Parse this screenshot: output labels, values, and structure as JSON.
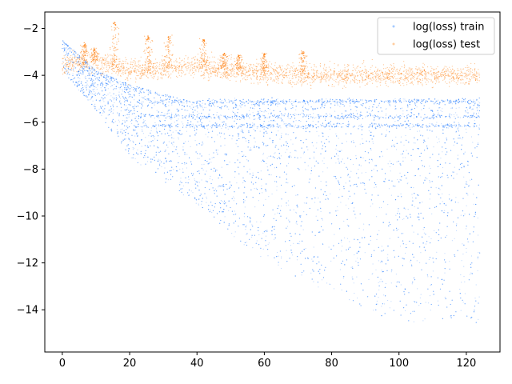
{
  "chart_data": {
    "type": "scatter",
    "title": "",
    "xlabel": "",
    "ylabel": "",
    "xlim": [
      -5.2,
      130
    ],
    "ylim": [
      -15.8,
      -1.3
    ],
    "xticks": [
      0,
      20,
      40,
      60,
      80,
      100,
      120
    ],
    "yticks": [
      -14,
      -12,
      -10,
      -8,
      -6,
      -4,
      -2
    ],
    "grid": false,
    "legend": {
      "location": "upper right"
    },
    "series": [
      {
        "name": "log(loss) train",
        "color": "#1f7bff",
        "x_range": [
          0,
          124
        ],
        "description_points": [
          {
            "x": 0,
            "y_top": -2.5,
            "y_bottom": -3.8
          },
          {
            "x": 10,
            "y_top": -3.8,
            "y_bottom": -5.5
          },
          {
            "x": 20,
            "y_top": -4.4,
            "y_bottom": -7.5
          },
          {
            "x": 40,
            "y_top": -5.2,
            "y_bottom": -9.5
          },
          {
            "x": 60,
            "y_top": -5.1,
            "y_bottom": -12.0
          },
          {
            "x": 80,
            "y_top": -5.1,
            "y_bottom": -13.6
          },
          {
            "x": 100,
            "y_top": -5.1,
            "y_bottom": -14.5
          },
          {
            "x": 124,
            "y_top": -5.1,
            "y_bottom": -14.7
          }
        ],
        "plateau_bands": [
          -5.1,
          -5.75,
          -6.15
        ]
      },
      {
        "name": "log(loss) test",
        "color": "#ff7f0e",
        "x_range": [
          0,
          124
        ],
        "description_points": [
          {
            "x": 0,
            "y": -3.5
          },
          {
            "x": 10,
            "y": -3.4
          },
          {
            "x": 20,
            "y": -3.8
          },
          {
            "x": 40,
            "y": -3.6
          },
          {
            "x": 60,
            "y": -3.9
          },
          {
            "x": 80,
            "y": -4.0
          },
          {
            "x": 100,
            "y": -4.0
          },
          {
            "x": 124,
            "y": -4.0
          }
        ],
        "spikes": [
          {
            "x": 6.5,
            "y": -2.7
          },
          {
            "x": 9.5,
            "y": -2.9
          },
          {
            "x": 15.5,
            "y": -1.8
          },
          {
            "x": 25.5,
            "y": -2.4
          },
          {
            "x": 31.5,
            "y": -2.4
          },
          {
            "x": 42,
            "y": -2.5
          },
          {
            "x": 48,
            "y": -3.1
          },
          {
            "x": 52.5,
            "y": -3.2
          },
          {
            "x": 60,
            "y": -3.1
          },
          {
            "x": 71.5,
            "y": -3.0
          }
        ]
      }
    ]
  }
}
